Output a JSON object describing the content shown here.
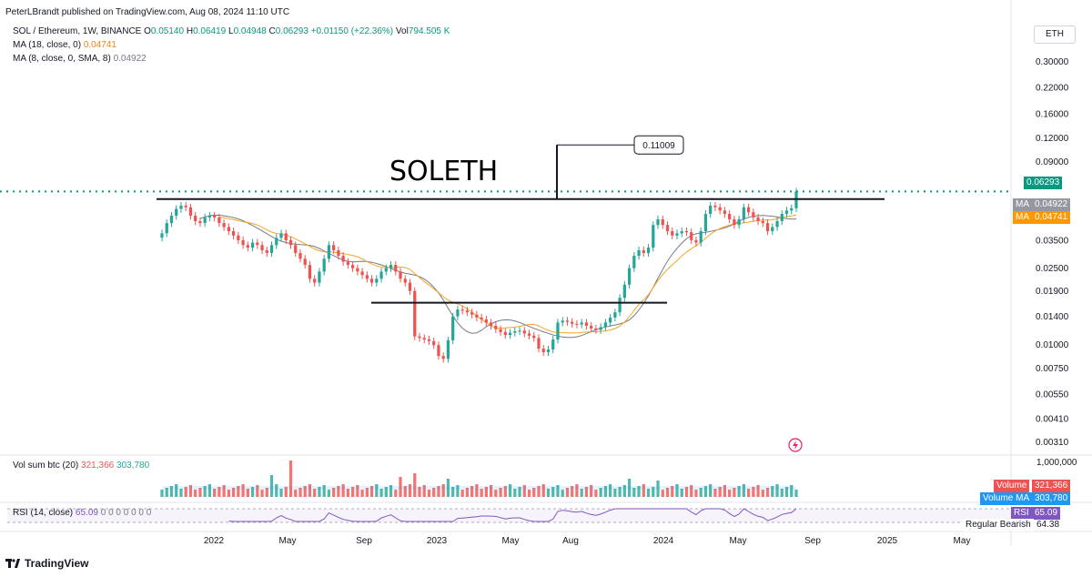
{
  "header": {
    "publish_line": "PeterLBrandt published on TradingView.com, Aug 08, 2024 11:10 UTC"
  },
  "legend": {
    "symbol": "SOL / Ethereum, 1W, BINANCE",
    "ohlc": [
      {
        "label": "O",
        "value": "0.05140"
      },
      {
        "label": "H",
        "value": "0.06419"
      },
      {
        "label": "L",
        "value": "0.04948"
      },
      {
        "label": "C",
        "value": "0.06293"
      }
    ],
    "change": "+0.01150 (+22.36%)",
    "vol_label": "Vol",
    "vol_value": "794.505 K",
    "ma1_label": "MA (18, close, 0)",
    "ma1_value": "0.04741",
    "ma2_label": "MA (8, close, 0, SMA, 8)",
    "ma2_value": "0.04922"
  },
  "axis_unit": "ETH",
  "annotations": {
    "chart_title": "SOLETH",
    "target_label": "0.11009"
  },
  "price_tags": {
    "last": "0.06293",
    "ma_label": "MA",
    "ma2": "0.04922",
    "ma1": "0.04741"
  },
  "volume_pane": {
    "legend_label": "Vol sum btc (20)",
    "value1": "321,366",
    "value2": "303,780",
    "scale_top": "1,000,000",
    "tag_volume_label": "Volume",
    "tag_volume_value": "321,366",
    "tag_volume_ma_label": "Volume MA",
    "tag_volume_ma_value": "303,780"
  },
  "rsi_pane": {
    "legend_label": "RSI (14, close)",
    "value": "65.09",
    "extra_values": "0 0 0 0 0 0 0",
    "tag_rsi_label": "RSI",
    "tag_rsi_value": "65.09",
    "bearish_label": "Regular Bearish",
    "bearish_value": "64.38"
  },
  "footer": {
    "logo_text": "TradingView"
  },
  "colors": {
    "up": "#26a69a",
    "down": "#ef5350",
    "ma18": "#f5a623",
    "ma8": "#787b86",
    "rsi": "#7e57c2",
    "last_price": "#089981"
  },
  "chart_data": {
    "type": "candlestick",
    "price_scale": "log",
    "ylim": [
      0.0027,
      0.38
    ],
    "y_ticks": [
      "0.30000",
      "0.22000",
      "0.16000",
      "0.12000",
      "0.09000",
      "0.06293",
      "0.04922",
      "0.03500",
      "0.02500",
      "0.01900",
      "0.01400",
      "0.01000",
      "0.00750",
      "0.00550",
      "0.00410",
      "0.00310"
    ],
    "x_ticks": [
      "2022",
      "May",
      "Sep",
      "2023",
      "May",
      "Aug",
      "2024",
      "May",
      "Sep",
      "2025",
      "May"
    ],
    "resistance_level": 0.0574,
    "support_level": 0.0165,
    "target_value": 0.11009,
    "closes": [
      0.038,
      0.043,
      0.047,
      0.051,
      0.053,
      0.052,
      0.047,
      0.044,
      0.043,
      0.046,
      0.047,
      0.046,
      0.043,
      0.041,
      0.039,
      0.037,
      0.035,
      0.033,
      0.032,
      0.034,
      0.033,
      0.031,
      0.03,
      0.033,
      0.036,
      0.038,
      0.035,
      0.033,
      0.03,
      0.028,
      0.026,
      0.022,
      0.021,
      0.024,
      0.028,
      0.033,
      0.031,
      0.029,
      0.027,
      0.026,
      0.025,
      0.024,
      0.023,
      0.022,
      0.021,
      0.022,
      0.024,
      0.025,
      0.026,
      0.024,
      0.022,
      0.021,
      0.019,
      0.011,
      0.0108,
      0.0106,
      0.0104,
      0.0099,
      0.0087,
      0.0084,
      0.0105,
      0.014,
      0.0152,
      0.015,
      0.0147,
      0.0143,
      0.0138,
      0.0135,
      0.013,
      0.0125,
      0.012,
      0.0116,
      0.0112,
      0.0115,
      0.0117,
      0.0118,
      0.0114,
      0.0111,
      0.0108,
      0.0095,
      0.0091,
      0.0094,
      0.0106,
      0.013,
      0.0133,
      0.0131,
      0.0128,
      0.0127,
      0.013,
      0.0125,
      0.0121,
      0.0119,
      0.0123,
      0.013,
      0.0138,
      0.0147,
      0.0175,
      0.0205,
      0.025,
      0.029,
      0.031,
      0.03,
      0.032,
      0.042,
      0.045,
      0.042,
      0.039,
      0.037,
      0.038,
      0.039,
      0.0385,
      0.035,
      0.034,
      0.039,
      0.048,
      0.053,
      0.052,
      0.05,
      0.048,
      0.045,
      0.042,
      0.045,
      0.052,
      0.049,
      0.046,
      0.044,
      0.043,
      0.039,
      0.041,
      0.044,
      0.048,
      0.05,
      0.0514,
      0.0629
    ],
    "ma8": [],
    "volume_values": [],
    "rsi": {
      "value": 65.09,
      "bearish_value": 64.38
    }
  }
}
